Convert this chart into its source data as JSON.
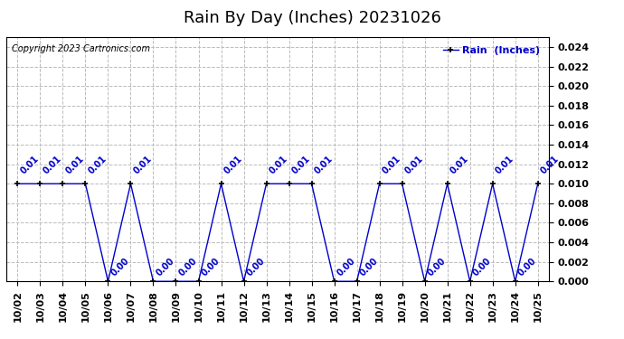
{
  "title": "Rain By Day (Inches) 20231026",
  "copyright_text": "Copyright 2023 Cartronics.com",
  "legend_label": "Rain  (Inches)",
  "dates": [
    "10/02",
    "10/03",
    "10/04",
    "10/05",
    "10/06",
    "10/07",
    "10/08",
    "10/09",
    "10/10",
    "10/11",
    "10/12",
    "10/13",
    "10/14",
    "10/15",
    "10/16",
    "10/17",
    "10/18",
    "10/19",
    "10/20",
    "10/21",
    "10/22",
    "10/23",
    "10/24",
    "10/25"
  ],
  "values": [
    0.01,
    0.01,
    0.01,
    0.01,
    0.0,
    0.01,
    0.0,
    0.0,
    0.0,
    0.01,
    0.0,
    0.01,
    0.01,
    0.01,
    0.0,
    0.0,
    0.01,
    0.01,
    0.0,
    0.01,
    0.0,
    0.01,
    0.0,
    0.01
  ],
  "line_color": "#0000cc",
  "marker_color": "#000000",
  "label_color": "#0000cc",
  "title_color": "#000000",
  "copyright_color": "#000000",
  "legend_color": "#0000cc",
  "grid_color": "#bbbbbb",
  "bg_color": "#ffffff",
  "ylim_min": 0.0,
  "ylim_max": 0.025,
  "ytick_step": 0.002,
  "title_fontsize": 13,
  "label_fontsize": 8,
  "tick_fontsize": 8,
  "annotation_fontsize": 7
}
